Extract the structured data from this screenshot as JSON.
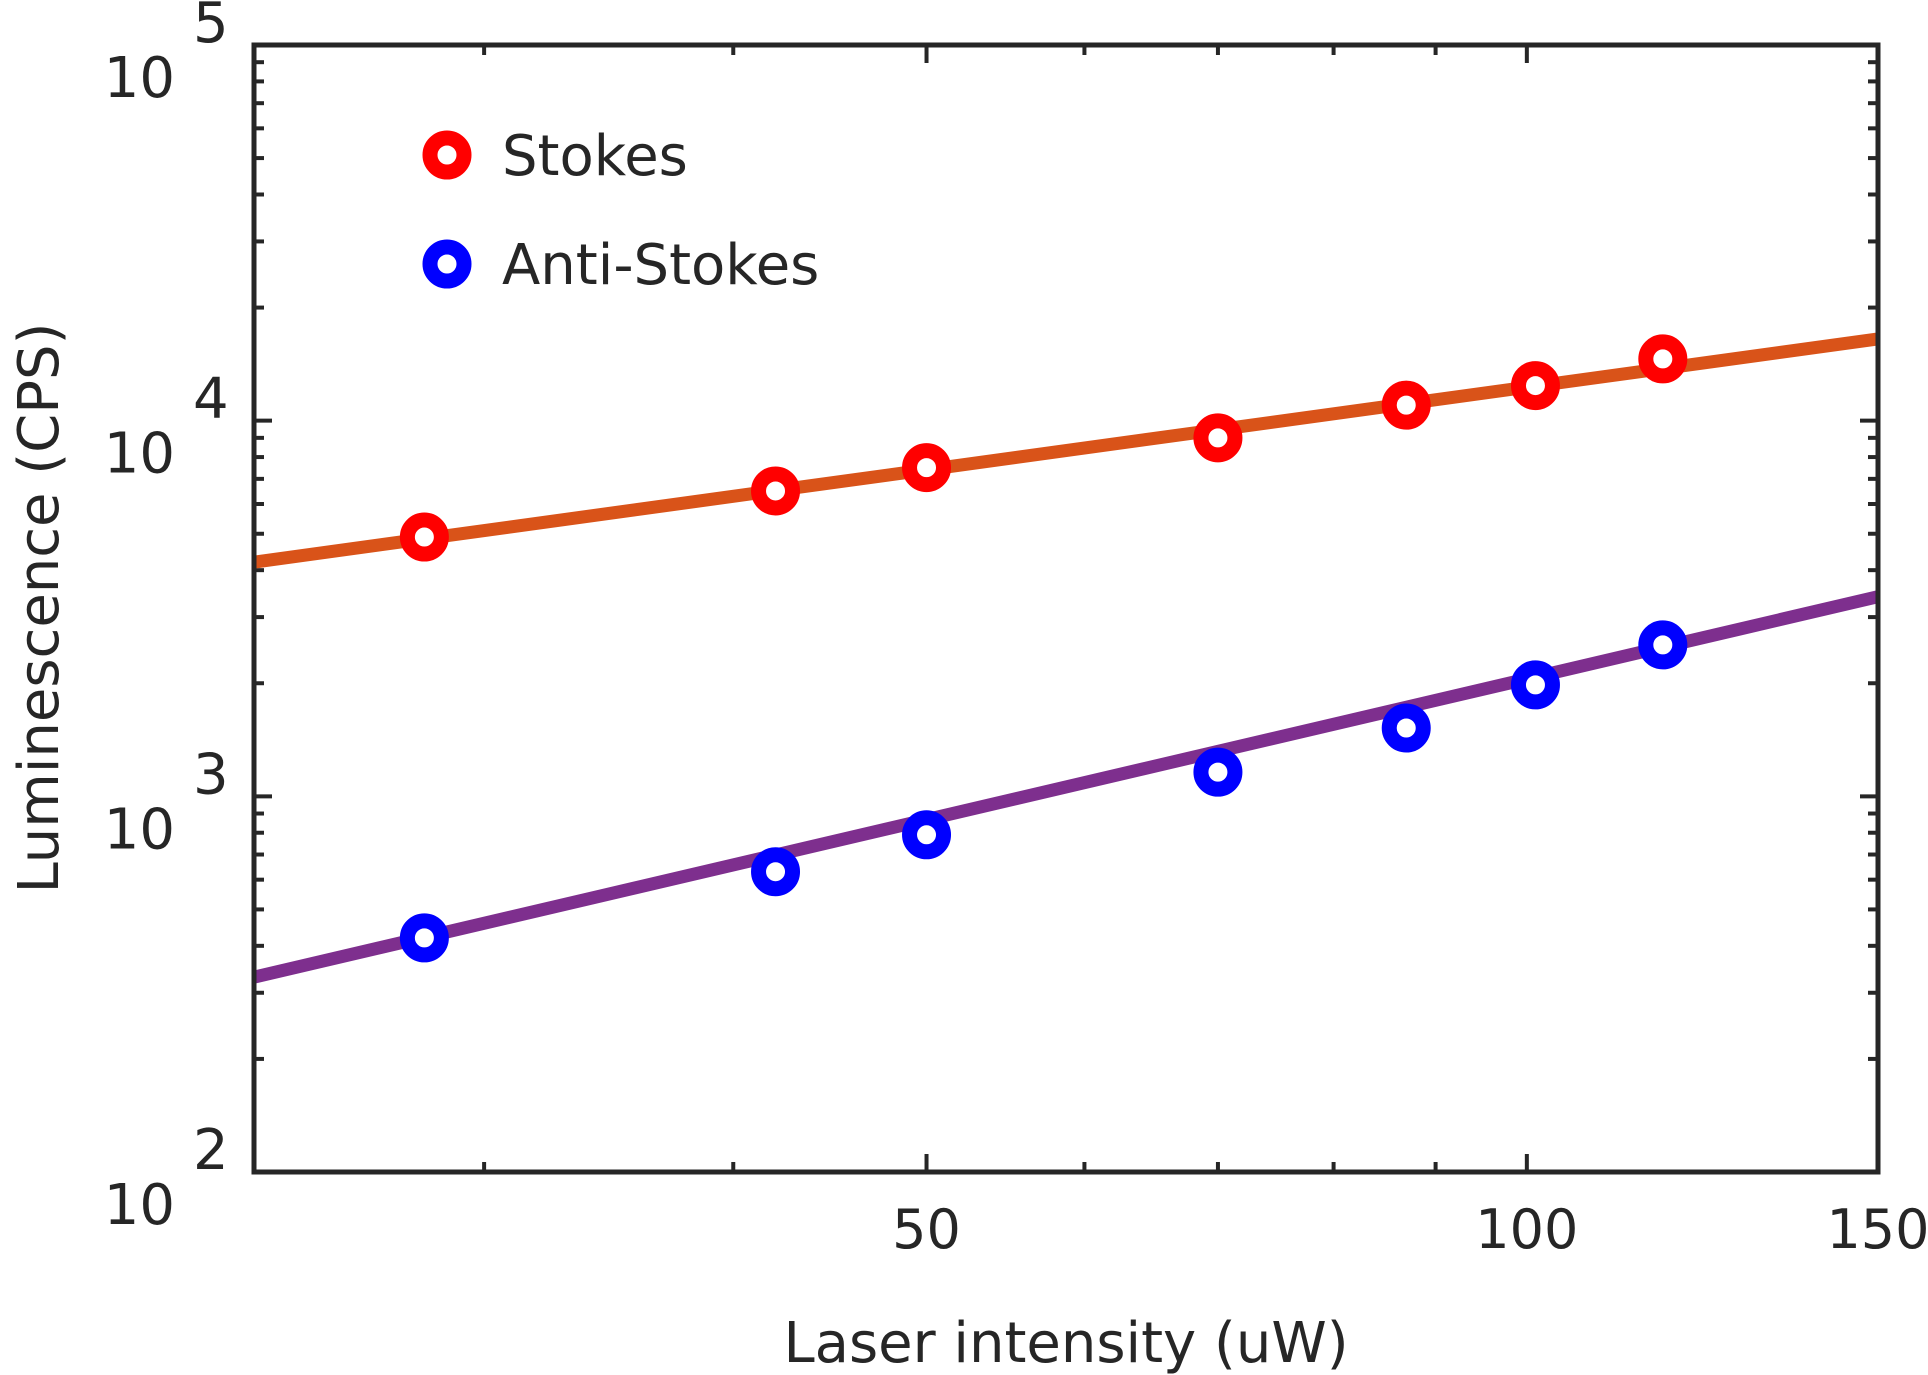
{
  "chart_data": {
    "type": "scatter",
    "xlabel": "Laser intensity (uW)",
    "ylabel": "Luminescence (CPS)",
    "x_scale": "log",
    "y_scale": "log",
    "xlim": [
      23,
      150
    ],
    "ylim": [
      100,
      100000
    ],
    "x_ticks": [
      {
        "value": 50,
        "label": "50"
      },
      {
        "value": 100,
        "label": "100"
      },
      {
        "value": 150,
        "label": "150"
      }
    ],
    "y_ticks": [
      {
        "value": 100,
        "base": "10",
        "exp": "2"
      },
      {
        "value": 1000,
        "base": "10",
        "exp": "3"
      },
      {
        "value": 10000,
        "base": "10",
        "exp": "4"
      },
      {
        "value": 100000,
        "base": "10",
        "exp": "5"
      }
    ],
    "grid": false,
    "legend_position": "top-left",
    "series": [
      {
        "name": "Stokes",
        "color": "#ff0000",
        "marker": "circle",
        "x": [
          28,
          42,
          50,
          70,
          87,
          101,
          117
        ],
        "y": [
          4900,
          6500,
          7500,
          9000,
          11000,
          12400,
          14600
        ]
      },
      {
        "name": "Anti-Stokes",
        "color": "#0000ff",
        "marker": "circle",
        "x": [
          28,
          42,
          50,
          70,
          87,
          101,
          117
        ],
        "y": [
          420,
          630,
          790,
          1160,
          1520,
          1980,
          2530
        ]
      }
    ],
    "fits": [
      {
        "of": "Stokes",
        "color": "#d95319",
        "x": [
          23,
          150
        ],
        "y": [
          4200,
          16500
        ]
      },
      {
        "of": "Anti-Stokes",
        "color": "#7e2f8e",
        "x": [
          23,
          150
        ],
        "y": [
          330,
          3400
        ]
      }
    ]
  }
}
